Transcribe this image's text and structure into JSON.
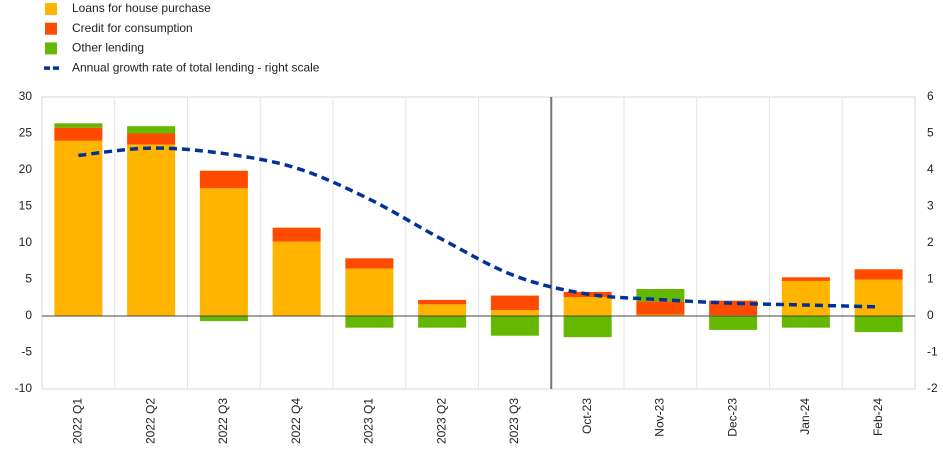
{
  "chart_data": {
    "type": "bar",
    "stacked": true,
    "categories": [
      "2022 Q1",
      "2022 Q2",
      "2022 Q3",
      "2022 Q4",
      "2023 Q1",
      "2023 Q2",
      "2023 Q3",
      "Oct-23",
      "Nov-23",
      "Dec-23",
      "Jan-24",
      "Feb-24"
    ],
    "series": [
      {
        "name": "Loans for house purchase",
        "color": "#ffb400",
        "values": [
          24.0,
          23.5,
          17.5,
          10.2,
          6.5,
          1.6,
          0.8,
          2.6,
          0.2,
          0.1,
          4.8,
          5.0
        ]
      },
      {
        "name": "Credit for consumption",
        "color": "#ff4b00",
        "values": [
          1.8,
          1.5,
          2.4,
          1.9,
          1.4,
          0.6,
          2.0,
          0.7,
          1.8,
          2.0,
          0.5,
          1.4
        ]
      },
      {
        "name": "Other lending",
        "color": "#65b800",
        "values": [
          0.6,
          1.0,
          -0.7,
          0.0,
          -1.6,
          -1.6,
          -2.7,
          -2.9,
          1.7,
          -1.9,
          -1.6,
          -2.2
        ]
      },
      {
        "name": "Annual growth rate of total lending - right scale",
        "color": "#003299",
        "type": "line",
        "axis": "y2",
        "values": [
          4.4,
          4.6,
          4.45,
          4.05,
          3.2,
          2.1,
          1.1,
          0.6,
          0.45,
          0.35,
          0.3,
          0.25
        ]
      }
    ],
    "ylim": [
      -10,
      30
    ],
    "yticks": [
      -10,
      -5,
      0,
      5,
      10,
      15,
      20,
      25,
      30
    ],
    "y2lim": [
      -2,
      6
    ],
    "y2ticks": [
      -2,
      -1,
      0,
      1,
      2,
      3,
      4,
      5,
      6
    ],
    "legend": "top-left"
  }
}
